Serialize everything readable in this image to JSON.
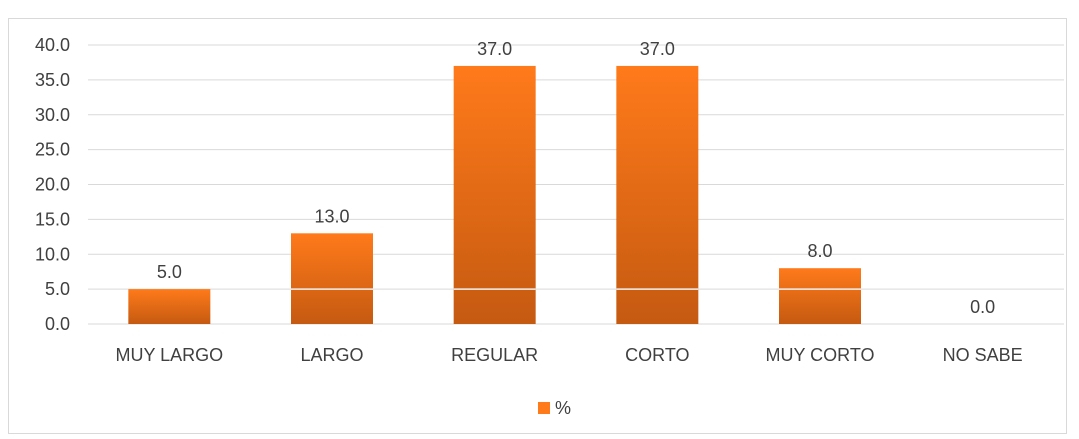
{
  "chart_data": {
    "type": "bar",
    "categories": [
      "MUY LARGO",
      "LARGO",
      "REGULAR",
      "CORTO",
      "MUY CORTO",
      "NO SABE"
    ],
    "series": [
      {
        "name": "%",
        "values": [
          5.0,
          13.0,
          37.0,
          37.0,
          8.0,
          0.0
        ]
      }
    ],
    "data_labels": [
      "5.0",
      "13.0",
      "37.0",
      "37.0",
      "8.0",
      "0.0"
    ],
    "y_ticks": [
      "0.0",
      "5.0",
      "10.0",
      "15.0",
      "20.0",
      "25.0",
      "30.0",
      "35.0",
      "40.0"
    ],
    "ylim": [
      0,
      40
    ],
    "grid": true,
    "legend_position": "bottom",
    "colors": {
      "bar_top": "#ff7a1a",
      "bar_bottom": "#c55a11",
      "grid": "#d9d9d9",
      "text": "#404040"
    }
  }
}
